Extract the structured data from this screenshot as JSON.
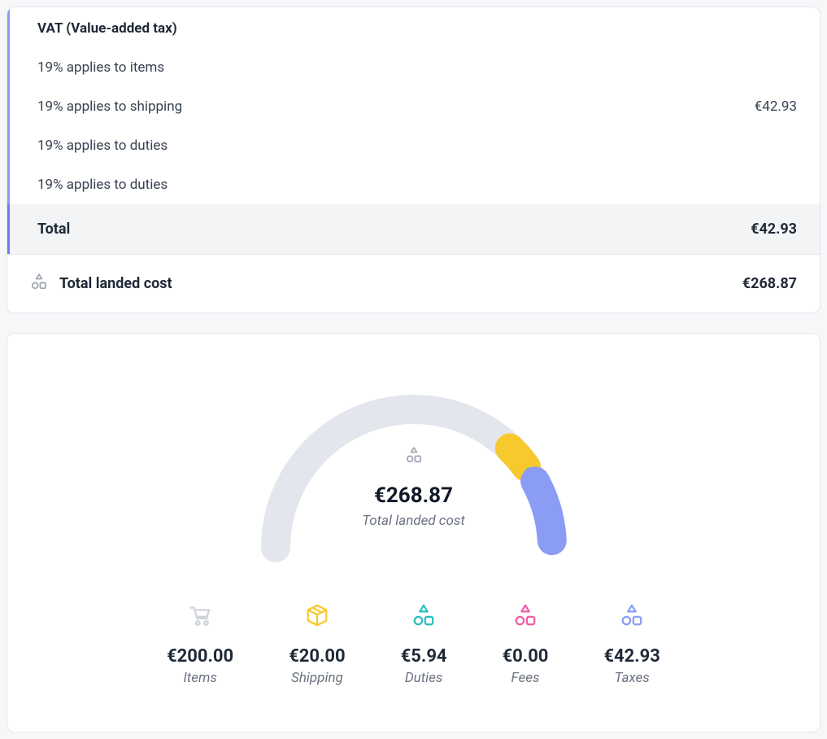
{
  "colors": {
    "bg": "#f6f7f9",
    "card_border": "#e5e7eb",
    "accent_border": "#8b9cf5",
    "text_primary": "#1f2937",
    "text_secondary": "#6b7280",
    "total_bg": "#f3f4f6"
  },
  "vat": {
    "title": "VAT (Value-added tax)",
    "rows": [
      {
        "label": "19% applies to items",
        "amount": ""
      },
      {
        "label": "19% applies to shipping",
        "amount": "€42.93"
      },
      {
        "label": "19% applies to duties",
        "amount": ""
      },
      {
        "label": "19% applies to duties",
        "amount": ""
      }
    ],
    "total_label": "Total",
    "total_amount": "€42.93"
  },
  "landed": {
    "label": "Total landed cost",
    "amount": "€268.87"
  },
  "gauge": {
    "total_amount": "€268.87",
    "sub_label": "Total landed cost",
    "track_color": "#e3e6ec",
    "segments": [
      {
        "key": "items",
        "value": 200.0,
        "color": "#e3e6ec"
      },
      {
        "key": "shipping",
        "value": 20.0,
        "color": "#f8c92d"
      },
      {
        "key": "duties",
        "value": 5.94,
        "color": "#2ac0bd"
      },
      {
        "key": "fees",
        "value": 0.0,
        "color": "#ef5da8"
      },
      {
        "key": "taxes",
        "value": 42.93,
        "color": "#8b9cf5"
      }
    ],
    "stroke_width": 36,
    "radius": 170,
    "gap_deg": 3
  },
  "legend": {
    "items": [
      {
        "key": "items",
        "icon": "cart",
        "icon_color": "#d1d5db",
        "amount": "€200.00",
        "label": "Items"
      },
      {
        "key": "shipping",
        "icon": "box",
        "icon_color": "#f8c92d",
        "amount": "€20.00",
        "label": "Shipping"
      },
      {
        "key": "duties",
        "icon": "shapes",
        "icon_color": "#2ac0bd",
        "amount": "€5.94",
        "label": "Duties"
      },
      {
        "key": "fees",
        "icon": "shapes",
        "icon_color": "#ef5da8",
        "amount": "€0.00",
        "label": "Fees"
      },
      {
        "key": "taxes",
        "icon": "shapes",
        "icon_color": "#8b9cf5",
        "amount": "€42.93",
        "label": "Taxes"
      }
    ]
  }
}
